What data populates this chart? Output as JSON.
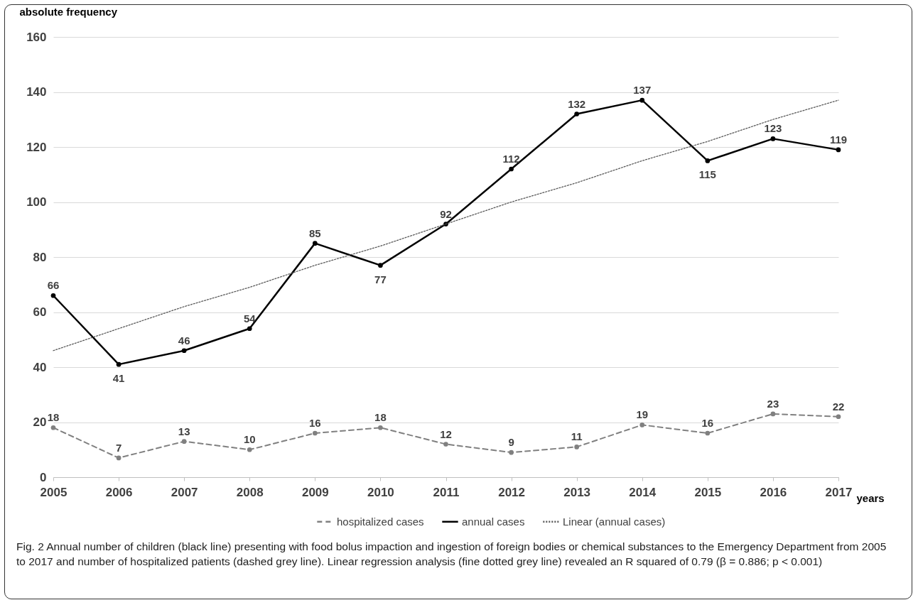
{
  "chart_data": {
    "type": "line",
    "ylabel": "absolute frequency",
    "xlabel": "years",
    "categories": [
      "2005",
      "2006",
      "2007",
      "2008",
      "2009",
      "2010",
      "2011",
      "2012",
      "2013",
      "2014",
      "2015",
      "2016",
      "2017"
    ],
    "series": [
      {
        "name": "hospitalized cases",
        "color": "#808080",
        "line_style": "dashed",
        "marker": "circle",
        "values": [
          18,
          7,
          13,
          10,
          16,
          18,
          12,
          9,
          11,
          19,
          16,
          23,
          22
        ],
        "value_labels": [
          "18",
          "7",
          "13",
          "10",
          "16",
          "18",
          "12",
          "9",
          "11",
          "19",
          "16",
          "23",
          "22"
        ]
      },
      {
        "name": "annual cases",
        "color": "#000000",
        "line_style": "solid",
        "marker": "circle",
        "values": [
          66,
          41,
          46,
          54,
          85,
          77,
          92,
          112,
          132,
          137,
          115,
          123,
          119
        ],
        "value_labels": [
          "66",
          "41",
          "46",
          "54",
          "85",
          "77",
          "92",
          "112",
          "132",
          "137",
          "115",
          "123",
          "119"
        ]
      },
      {
        "name": "Linear (annual cases)",
        "type": "line",
        "color": "#595959",
        "line_style": "dotted",
        "marker": "none",
        "values": [
          46,
          54,
          62,
          69,
          77,
          84,
          92,
          100,
          107,
          115,
          122,
          130,
          137
        ]
      }
    ],
    "ylim": [
      0,
      160
    ],
    "yticks": [
      0,
      20,
      40,
      60,
      80,
      100,
      120,
      140,
      160
    ],
    "grid": "y",
    "legend": "bottom",
    "annotations": [
      "Fig. 2 Annual number of children (black line) presenting with food bolus impaction and ingestion of foreign bodies or chemical substances to the Emergency Department from 2005 to 2017 and number of hospitalized patients (dashed grey line). Linear regression analysis (fine dotted grey line) revealed an R squared of 0.79 (β = 0.886; p < 0.001)"
    ]
  }
}
